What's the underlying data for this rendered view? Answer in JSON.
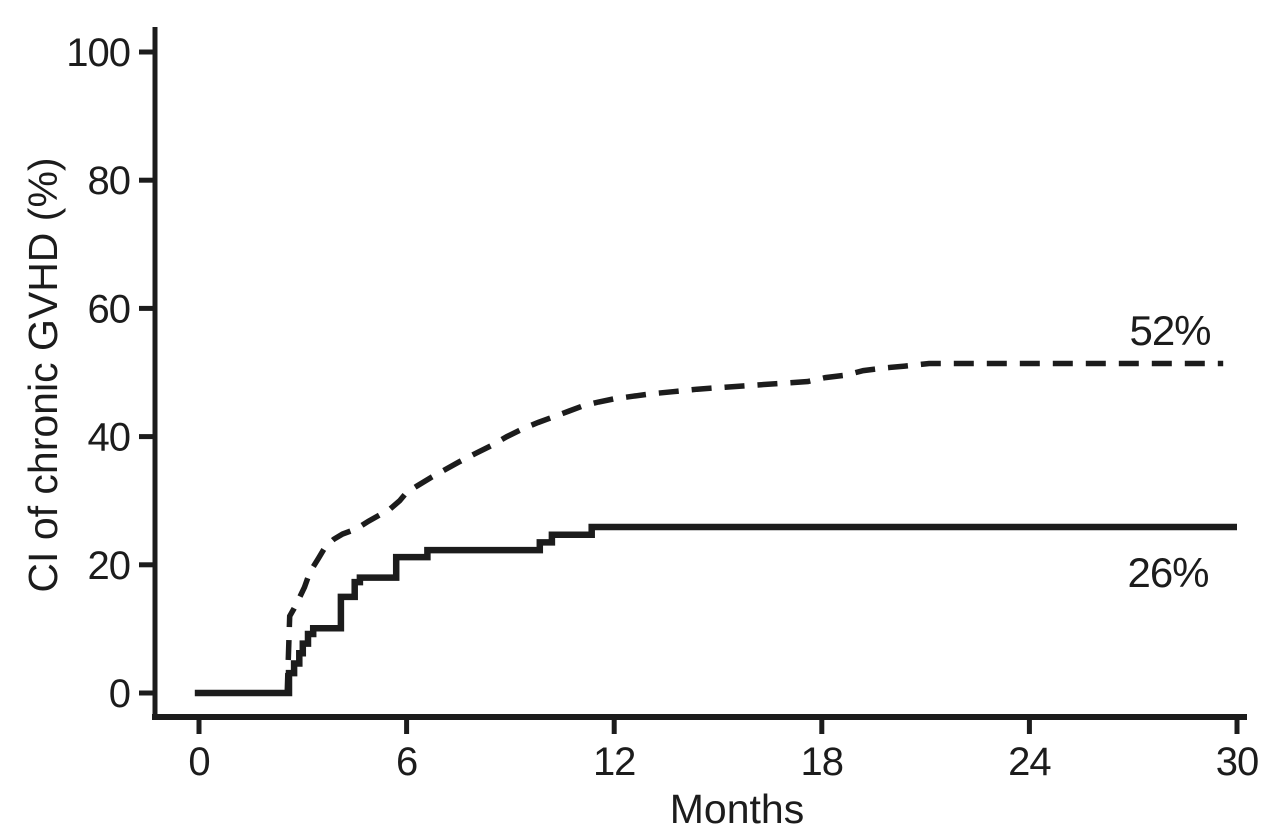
{
  "figure": {
    "background": "#ffffff",
    "ink": "#1c1c1c"
  },
  "chart_data": {
    "type": "line",
    "title": "",
    "xlabel": "Months",
    "ylabel": "CI of chronic GVHD (%)",
    "xlim": [
      0,
      30
    ],
    "ylim": [
      0,
      100
    ],
    "x_ticks": [
      "0",
      "6",
      "12",
      "18",
      "24",
      "30"
    ],
    "y_ticks": [
      "0",
      "20",
      "40",
      "60",
      "80",
      "100"
    ],
    "grid": false,
    "legend": "none",
    "series": [
      {
        "name": "upper-cumulative-incidence-curve",
        "line_style": "dashed",
        "final_value_label": "52%",
        "points": [
          [
            2.55,
            0
          ],
          [
            2.62,
            12
          ],
          [
            2.75,
            13.2
          ],
          [
            2.9,
            14.8
          ],
          [
            3.05,
            16.5
          ],
          [
            3.2,
            18.8
          ],
          [
            3.45,
            21
          ],
          [
            3.65,
            22.8
          ],
          [
            3.9,
            24
          ],
          [
            4.15,
            24.8
          ],
          [
            4.55,
            25.6
          ],
          [
            4.9,
            26.8
          ],
          [
            5.2,
            27.7
          ],
          [
            5.5,
            28.6
          ],
          [
            5.8,
            30
          ],
          [
            6.0,
            31.3
          ],
          [
            6.3,
            32.3
          ],
          [
            6.7,
            33.6
          ],
          [
            7.1,
            34.8
          ],
          [
            7.5,
            36
          ],
          [
            8.0,
            37.4
          ],
          [
            8.45,
            38.6
          ],
          [
            8.9,
            40
          ],
          [
            9.35,
            41.2
          ],
          [
            9.8,
            42.2
          ],
          [
            10.2,
            43
          ],
          [
            10.7,
            44
          ],
          [
            11.1,
            44.8
          ],
          [
            11.55,
            45.4
          ],
          [
            12.0,
            45.9
          ],
          [
            12.55,
            46.3
          ],
          [
            13.1,
            46.7
          ],
          [
            13.7,
            47
          ],
          [
            14.4,
            47.4
          ],
          [
            15.2,
            47.7
          ],
          [
            16.0,
            48
          ],
          [
            16.8,
            48.3
          ],
          [
            17.6,
            48.6
          ],
          [
            18.1,
            49.2
          ],
          [
            18.7,
            49.6
          ],
          [
            19.2,
            50.3
          ],
          [
            19.8,
            50.7
          ],
          [
            20.4,
            51
          ],
          [
            21.1,
            51.4
          ],
          [
            29.6,
            51.4
          ]
        ]
      },
      {
        "name": "lower-cumulative-incidence-curve",
        "line_style": "solid",
        "final_value_label": "26%",
        "points": [
          [
            -0.12,
            0
          ],
          [
            2.6,
            0
          ],
          [
            2.6,
            3.1
          ],
          [
            2.75,
            3.1
          ],
          [
            2.75,
            4.6
          ],
          [
            2.9,
            4.6
          ],
          [
            2.9,
            6.2
          ],
          [
            3.0,
            6.2
          ],
          [
            3.0,
            7.7
          ],
          [
            3.15,
            7.7
          ],
          [
            3.15,
            9.2
          ],
          [
            3.3,
            9.2
          ],
          [
            3.3,
            10.1
          ],
          [
            4.1,
            10.1
          ],
          [
            4.1,
            15
          ],
          [
            4.5,
            15
          ],
          [
            4.5,
            17.3
          ],
          [
            4.65,
            17.3
          ],
          [
            4.65,
            18
          ],
          [
            5.7,
            18
          ],
          [
            5.7,
            21.2
          ],
          [
            6.6,
            21.2
          ],
          [
            6.6,
            22.3
          ],
          [
            9.85,
            22.3
          ],
          [
            9.85,
            23.5
          ],
          [
            10.2,
            23.5
          ],
          [
            10.2,
            24.7
          ],
          [
            11.35,
            24.7
          ],
          [
            11.35,
            25.9
          ],
          [
            30,
            25.9
          ]
        ]
      }
    ],
    "annotations": [
      {
        "text": "52%",
        "x_month": 28.1,
        "y_pct": 56.6
      },
      {
        "text": "26%",
        "x_month": 28.0,
        "y_pct": 18.9
      }
    ]
  }
}
